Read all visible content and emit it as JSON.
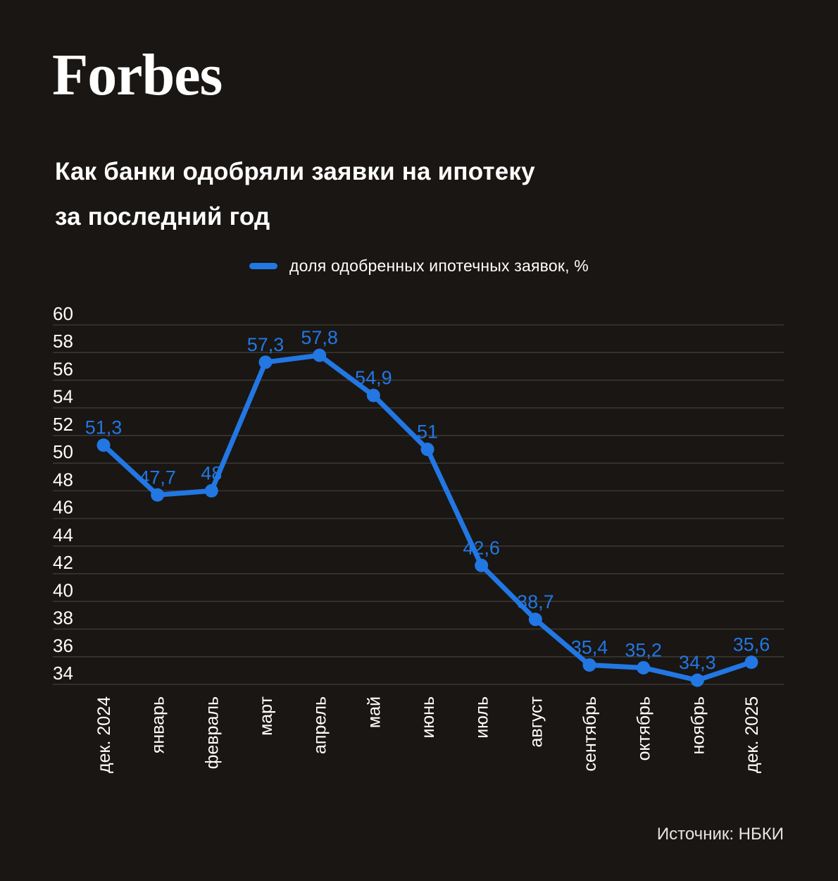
{
  "page": {
    "background_color": "#191613",
    "accent_color": "#2277e3"
  },
  "logo": {
    "text": "Forbes"
  },
  "title": {
    "line1": "Как банки одобряли заявки на ипотеку",
    "line2": "за последний год"
  },
  "legend": {
    "label": "доля одобренных ипотечных заявок, %",
    "swatch_color": "#2277e3"
  },
  "source": {
    "text": "Источник: НБКИ"
  },
  "chart_data": {
    "type": "line",
    "title": "Как банки одобряли заявки на ипотеку за последний год",
    "series_name": "доля одобренных ипотечных заявок, %",
    "categories": [
      "дек. 2024",
      "январь",
      "февраль",
      "март",
      "апрель",
      "май",
      "июнь",
      "июль",
      "август",
      "сентябрь",
      "октябрь",
      "ноябрь",
      "дек. 2025"
    ],
    "values": [
      51.3,
      47.7,
      48,
      57.3,
      57.8,
      54.9,
      51,
      42.6,
      38.7,
      35.4,
      35.2,
      34.3,
      35.6
    ],
    "value_labels": [
      "51,3",
      "47,7",
      "48",
      "57,3",
      "57,8",
      "54,9",
      "51",
      "42,6",
      "38,7",
      "35,4",
      "35,2",
      "34,3",
      "35,6"
    ],
    "ylim": [
      34,
      60
    ],
    "yticks": [
      60,
      58,
      56,
      54,
      52,
      50,
      48,
      46,
      44,
      42,
      40,
      38,
      36,
      34
    ],
    "grid": true,
    "legend_position": "top-center",
    "line_color": "#2277e3",
    "point_color": "#2277e3",
    "value_label_color": "#2277e3",
    "axis_text_color": "#ffffff",
    "gridline_color": "#3a3733",
    "xlabel": "",
    "ylabel": ""
  }
}
